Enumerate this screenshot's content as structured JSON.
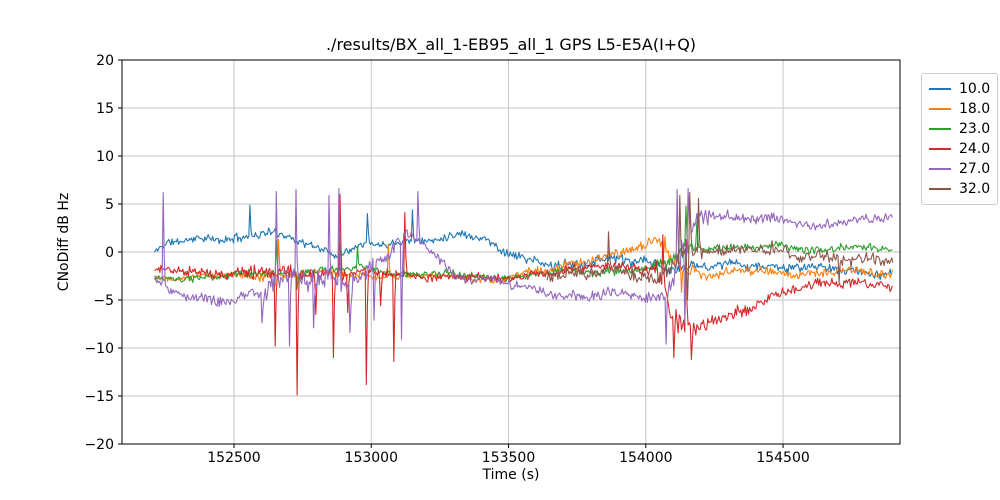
{
  "chart_data": {
    "type": "line",
    "title": "./results/BX_all_1-EB95_all_1 GPS L5-E5A(I+Q)",
    "xlabel": "Time (s)",
    "ylabel": "CNoDiff dB Hz",
    "xlim": [
      152092,
      154926
    ],
    "ylim": [
      -20,
      20
    ],
    "grid": true,
    "grid_color": "#c6c6c6",
    "spine_color": "#000000",
    "legend_position": "outside-right",
    "xticks": [
      {
        "v": 152500,
        "label": "152500"
      },
      {
        "v": 153000,
        "label": "153000"
      },
      {
        "v": 153500,
        "label": "153500"
      },
      {
        "v": 154000,
        "label": "154000"
      },
      {
        "v": 154500,
        "label": "154500"
      }
    ],
    "yticks": [
      {
        "v": 20,
        "label": "20"
      },
      {
        "v": 15,
        "label": "15"
      },
      {
        "v": 10,
        "label": "10"
      },
      {
        "v": 5,
        "label": "5"
      },
      {
        "v": 0,
        "label": "0"
      },
      {
        "v": -5,
        "label": "−5"
      },
      {
        "v": -10,
        "label": "−10"
      },
      {
        "v": -15,
        "label": "−15"
      },
      {
        "v": -20,
        "label": "−20"
      }
    ],
    "sample_step_s": 4,
    "series": [
      {
        "name": "10.0",
        "color": "#1f77b4",
        "seed": 11,
        "t_start": 152210,
        "t_end": 154900,
        "mean": [
          [
            152210,
            0.0
          ],
          [
            152260,
            1.0
          ],
          [
            152350,
            1.2
          ],
          [
            152450,
            1.3
          ],
          [
            152550,
            1.7
          ],
          [
            152620,
            2.2
          ],
          [
            152700,
            1.4
          ],
          [
            152810,
            0.3
          ],
          [
            152870,
            -0.3
          ],
          [
            152950,
            0.9
          ],
          [
            153050,
            0.8
          ],
          [
            153150,
            1.0
          ],
          [
            153250,
            1.4
          ],
          [
            153330,
            2.2
          ],
          [
            153410,
            1.3
          ],
          [
            153480,
            0.0
          ],
          [
            153560,
            -0.9
          ],
          [
            153700,
            -1.3
          ],
          [
            153850,
            -0.9
          ],
          [
            154000,
            -1.1
          ],
          [
            154100,
            -1.6
          ],
          [
            154250,
            -1.5
          ],
          [
            154400,
            -1.3
          ],
          [
            154550,
            -1.6
          ],
          [
            154700,
            -1.9
          ],
          [
            154900,
            -2.2
          ]
        ],
        "noise": [
          [
            152210,
            0.45
          ],
          [
            152550,
            0.55
          ],
          [
            153160,
            0.45
          ],
          [
            154040,
            0.8
          ],
          [
            154220,
            0.55
          ],
          [
            154900,
            0.55
          ]
        ],
        "spikes": [
          [
            152558,
            4.9
          ],
          [
            152985,
            4.0
          ],
          [
            153148,
            4.4
          ]
        ]
      },
      {
        "name": "18.0",
        "color": "#ff7f0e",
        "seed": 22,
        "t_start": 152210,
        "t_end": 154900,
        "mean": [
          [
            152210,
            -2.6
          ],
          [
            152500,
            -2.5
          ],
          [
            152800,
            -2.3
          ],
          [
            153100,
            -2.5
          ],
          [
            153300,
            -2.6
          ],
          [
            153450,
            -2.9
          ],
          [
            153550,
            -2.4
          ],
          [
            153650,
            -1.8
          ],
          [
            153800,
            -0.8
          ],
          [
            153900,
            -0.2
          ],
          [
            153980,
            0.5
          ],
          [
            154045,
            0.8
          ],
          [
            154090,
            -0.5
          ],
          [
            154150,
            -1.8
          ],
          [
            154250,
            -2.2
          ],
          [
            154400,
            -2.0
          ],
          [
            154550,
            -2.3
          ],
          [
            154700,
            -2.0
          ],
          [
            154850,
            -2.3
          ],
          [
            154900,
            -2.2
          ]
        ],
        "noise": [
          [
            152210,
            0.38
          ],
          [
            152560,
            0.5
          ],
          [
            153160,
            0.42
          ],
          [
            153650,
            0.55
          ],
          [
            153950,
            0.65
          ],
          [
            154100,
            0.9
          ],
          [
            154280,
            0.55
          ],
          [
            154900,
            0.6
          ]
        ],
        "spikes": [
          [
            152660,
            1.3
          ],
          [
            152880,
            0.9
          ],
          [
            153060,
            0.8
          ],
          [
            154070,
            1.6
          ],
          [
            154130,
            -4.2
          ]
        ]
      },
      {
        "name": "23.0",
        "color": "#2ca02c",
        "seed": 33,
        "t_start": 152210,
        "t_end": 154900,
        "mean": [
          [
            152210,
            -2.9
          ],
          [
            152400,
            -2.6
          ],
          [
            152600,
            -2.3
          ],
          [
            152800,
            -1.9
          ],
          [
            152950,
            -1.8
          ],
          [
            153100,
            -2.2
          ],
          [
            153300,
            -2.4
          ],
          [
            153460,
            -2.7
          ],
          [
            153600,
            -2.3
          ],
          [
            153800,
            -2.0
          ],
          [
            153950,
            -1.8
          ],
          [
            154040,
            -1.7
          ],
          [
            154090,
            -0.8
          ],
          [
            154150,
            0.2
          ],
          [
            154250,
            0.6
          ],
          [
            154400,
            0.4
          ],
          [
            154500,
            0.6
          ],
          [
            154600,
            0.2
          ],
          [
            154700,
            0.6
          ],
          [
            154800,
            0.4
          ],
          [
            154900,
            0.1
          ]
        ],
        "noise": [
          [
            152210,
            0.35
          ],
          [
            152580,
            0.5
          ],
          [
            153160,
            0.4
          ],
          [
            154020,
            0.55
          ],
          [
            154130,
            0.9
          ],
          [
            154260,
            0.5
          ],
          [
            154900,
            0.5
          ]
        ],
        "spikes": [
          [
            152655,
            1.2
          ],
          [
            152730,
            -3.9
          ],
          [
            152950,
            0.6
          ],
          [
            154147,
            4.8
          ],
          [
            154185,
            3.2
          ]
        ]
      },
      {
        "name": "24.0",
        "color": "#d62728",
        "seed": 44,
        "t_start": 152210,
        "t_end": 154900,
        "mean": [
          [
            152210,
            -2.0
          ],
          [
            152450,
            -2.1
          ],
          [
            152700,
            -2.3
          ],
          [
            152950,
            -2.2
          ],
          [
            153150,
            -2.4
          ],
          [
            153350,
            -2.6
          ],
          [
            153470,
            -2.9
          ],
          [
            153600,
            -2.2
          ],
          [
            153750,
            -1.8
          ],
          [
            153950,
            -1.4
          ],
          [
            154045,
            -1.8
          ],
          [
            154085,
            -5.5
          ],
          [
            154130,
            -8.3
          ],
          [
            154190,
            -8.6
          ],
          [
            154250,
            -7.0
          ],
          [
            154350,
            -6.0
          ],
          [
            154450,
            -4.8
          ],
          [
            154550,
            -3.9
          ],
          [
            154650,
            -3.2
          ],
          [
            154750,
            -3.0
          ],
          [
            154850,
            -3.3
          ],
          [
            154900,
            -3.9
          ]
        ],
        "noise": [
          [
            152210,
            0.45
          ],
          [
            152560,
            0.9
          ],
          [
            153160,
            0.5
          ],
          [
            153950,
            0.55
          ],
          [
            154090,
            1.8
          ],
          [
            154260,
            0.8
          ],
          [
            154450,
            0.6
          ],
          [
            154900,
            0.6
          ]
        ],
        "spikes": [
          [
            152648,
            -9.8
          ],
          [
            152728,
            -14.9
          ],
          [
            152798,
            -6.5
          ],
          [
            152860,
            -11.0
          ],
          [
            152886,
            6.0
          ],
          [
            152915,
            -6.3
          ],
          [
            152980,
            -13.8
          ],
          [
            153035,
            -5.6
          ],
          [
            153080,
            -11.4
          ],
          [
            153120,
            4.1
          ],
          [
            154060,
            1.8
          ],
          [
            154100,
            -11.0
          ],
          [
            154145,
            1.3
          ],
          [
            154165,
            -11.2
          ]
        ]
      },
      {
        "name": "27.0",
        "color": "#9467bd",
        "seed": 55,
        "t_start": 152210,
        "t_end": 154900,
        "mean": [
          [
            152210,
            -2.6
          ],
          [
            152270,
            -4.1
          ],
          [
            152360,
            -5.0
          ],
          [
            152480,
            -5.1
          ],
          [
            152560,
            -4.2
          ],
          [
            152640,
            -3.2
          ],
          [
            152800,
            -3.1
          ],
          [
            152950,
            -2.6
          ],
          [
            153040,
            -0.8
          ],
          [
            153130,
            1.7
          ],
          [
            153210,
            0.5
          ],
          [
            153300,
            -2.4
          ],
          [
            153420,
            -2.9
          ],
          [
            153500,
            -3.4
          ],
          [
            153620,
            -4.1
          ],
          [
            153780,
            -4.6
          ],
          [
            153950,
            -4.5
          ],
          [
            154040,
            -4.9
          ],
          [
            154085,
            -3.5
          ],
          [
            154130,
            0.5
          ],
          [
            154180,
            2.8
          ],
          [
            154250,
            3.8
          ],
          [
            154350,
            3.4
          ],
          [
            154450,
            3.8
          ],
          [
            154550,
            3.1
          ],
          [
            154620,
            2.4
          ],
          [
            154700,
            3.0
          ],
          [
            154800,
            3.5
          ],
          [
            154900,
            3.9
          ]
        ],
        "noise": [
          [
            152210,
            0.5
          ],
          [
            152560,
            0.7
          ],
          [
            152620,
            1.4
          ],
          [
            153040,
            1.2
          ],
          [
            153130,
            0.7
          ],
          [
            153300,
            0.6
          ],
          [
            153600,
            0.55
          ],
          [
            154040,
            0.8
          ],
          [
            154160,
            1.4
          ],
          [
            154260,
            0.65
          ],
          [
            154900,
            0.6
          ]
        ],
        "spikes": [
          [
            152240,
            6.2
          ],
          [
            152600,
            -7.4
          ],
          [
            152655,
            6.3
          ],
          [
            152700,
            -9.8
          ],
          [
            152725,
            6.5
          ],
          [
            152790,
            -7.9
          ],
          [
            152845,
            5.9
          ],
          [
            152880,
            6.6
          ],
          [
            152920,
            -8.4
          ],
          [
            153010,
            -7.1
          ],
          [
            153170,
            6.3
          ],
          [
            153110,
            -9.1
          ],
          [
            154075,
            -9.6
          ],
          [
            154115,
            6.5
          ],
          [
            154140,
            -7.4
          ],
          [
            154155,
            6.6
          ]
        ]
      },
      {
        "name": "32.0",
        "color": "#8c564b",
        "seed": 66,
        "t_start": 153640,
        "t_end": 154900,
        "mean": [
          [
            153640,
            -2.5
          ],
          [
            153760,
            -2.1
          ],
          [
            153860,
            -1.5
          ],
          [
            153950,
            -2.6
          ],
          [
            154040,
            -3.1
          ],
          [
            154095,
            -1.2
          ],
          [
            154160,
            0.4
          ],
          [
            154260,
            0.2
          ],
          [
            154360,
            0.0
          ],
          [
            154460,
            0.4
          ],
          [
            154560,
            -0.3
          ],
          [
            154660,
            -0.6
          ],
          [
            154760,
            -1.2
          ],
          [
            154830,
            -0.5
          ],
          [
            154900,
            -0.9
          ]
        ],
        "noise": [
          [
            153640,
            0.6
          ],
          [
            154040,
            0.9
          ],
          [
            154170,
            1.1
          ],
          [
            154300,
            0.8
          ],
          [
            154900,
            0.8
          ]
        ],
        "spikes": [
          [
            153862,
            2.1
          ],
          [
            154125,
            5.9
          ],
          [
            154150,
            -5.0
          ],
          [
            154160,
            6.2
          ],
          [
            154190,
            5.6
          ],
          [
            154705,
            -3.2
          ]
        ]
      }
    ]
  }
}
